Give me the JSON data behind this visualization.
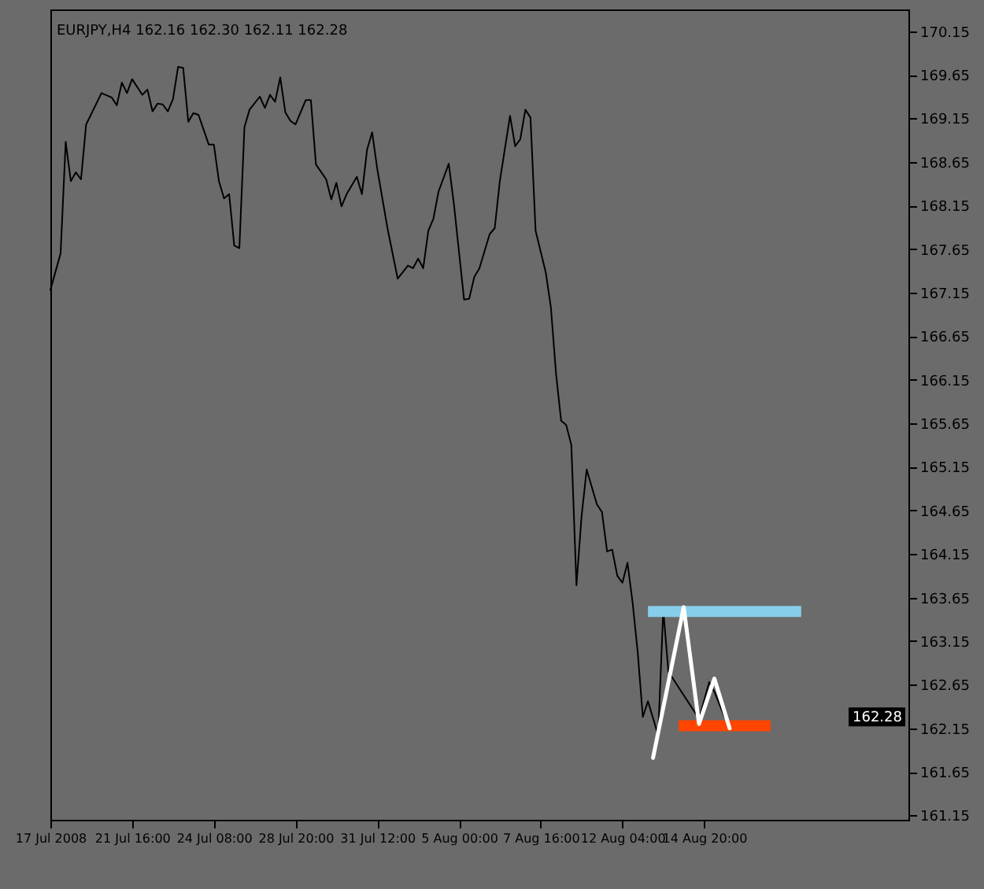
{
  "chart_data": {
    "type": "line",
    "title": "EURJPY,H4  162.16 162.30 162.11 162.28",
    "categories": [
      "17 Jul 2008",
      null,
      null,
      null,
      null,
      null,
      null,
      null,
      null,
      null,
      null,
      null,
      null,
      null,
      null,
      null,
      "21 Jul 16:00",
      null,
      null,
      null,
      null,
      null,
      null,
      null,
      null,
      null,
      null,
      null,
      null,
      null,
      null,
      null,
      "24 Jul 08:00",
      null,
      null,
      null,
      null,
      null,
      null,
      null,
      null,
      null,
      null,
      null,
      null,
      null,
      null,
      null,
      "28 Jul 20:00",
      null,
      null,
      null,
      null,
      null,
      null,
      null,
      null,
      null,
      null,
      null,
      null,
      null,
      null,
      null,
      "31 Jul 12:00",
      null,
      null,
      null,
      null,
      null,
      null,
      null,
      null,
      null,
      null,
      null,
      null,
      null,
      null,
      null,
      "5 Aug 00:00",
      null,
      null,
      null,
      null,
      null,
      null,
      null,
      null,
      null,
      null,
      null,
      null,
      null,
      null,
      null,
      "7 Aug 16:00",
      null,
      null,
      null,
      null,
      null,
      null,
      null,
      null,
      null,
      null,
      null,
      null,
      null,
      null,
      null,
      "12 Aug 04:00",
      null,
      null,
      null,
      null,
      null,
      null,
      null,
      null,
      null,
      null,
      null,
      null,
      null,
      null,
      null,
      "14 Aug 20:00",
      null,
      null,
      null,
      null,
      null,
      null,
      null,
      null,
      null,
      null,
      null,
      null,
      null,
      null,
      null,
      null,
      null,
      null,
      null,
      null,
      null,
      null,
      null,
      null,
      null,
      null,
      null,
      null,
      null,
      null,
      null,
      null,
      null,
      null,
      null,
      null,
      null,
      null,
      null,
      null
    ],
    "ylim": [
      161.1,
      170.4
    ],
    "yticks": [
      161.15,
      161.65,
      162.15,
      162.65,
      163.15,
      163.65,
      164.15,
      164.65,
      165.15,
      165.65,
      166.15,
      166.65,
      167.15,
      167.65,
      168.15,
      168.65,
      169.15,
      169.65,
      170.15
    ],
    "grid": false,
    "marker": "none",
    "line_style": "solid",
    "annotations": [
      {
        "text": "162.28",
        "y": 162.28
      }
    ],
    "series": [
      {
        "color": "#000000",
        "values": [
          167.18,
          null,
          167.6,
          168.88,
          168.43,
          168.53,
          168.45,
          169.08,
          null,
          null,
          169.44,
          null,
          169.39,
          169.3,
          169.56,
          169.44,
          169.6,
          null,
          169.42,
          169.48,
          169.23,
          169.32,
          169.31,
          169.23,
          169.37,
          169.74,
          169.73,
          169.11,
          169.21,
          169.19,
          null,
          168.85,
          168.85,
          168.43,
          168.23,
          168.28,
          167.69,
          167.66,
          169.05,
          169.25,
          null,
          169.4,
          169.27,
          169.42,
          169.34,
          169.62,
          169.22,
          169.12,
          169.08,
          null,
          169.36,
          169.36,
          168.62,
          null,
          168.45,
          168.22,
          168.41,
          168.14,
          168.28,
          null,
          168.48,
          168.28,
          168.79,
          168.99,
          168.57,
          null,
          167.89,
          null,
          167.31,
          null,
          167.46,
          167.43,
          167.54,
          167.43,
          167.86,
          168.0,
          168.31,
          null,
          168.63,
          168.17,
          null,
          167.07,
          167.08,
          167.33,
          167.43,
          null,
          167.82,
          167.89,
          168.43,
          null,
          169.18,
          168.83,
          168.91,
          169.25,
          169.16,
          167.86,
          null,
          167.38,
          166.98,
          166.22,
          165.68,
          165.63,
          165.4,
          163.79,
          164.58,
          165.12,
          null,
          164.72,
          164.63,
          164.18,
          164.2,
          163.9,
          163.82,
          164.05,
          163.59,
          163.02,
          162.28,
          162.46,
          null,
          162.07,
          163.51,
          162.8,
          null,
          null,
          null,
          null,
          null,
          162.26,
          null,
          162.68,
          162.57,
          null,
          162.28,
          null,
          null,
          null,
          null,
          null,
          null,
          null,
          null,
          null,
          null,
          null,
          null,
          null,
          null,
          null,
          null,
          null,
          null,
          null,
          null,
          null,
          null,
          null,
          null,
          null,
          null,
          null,
          null,
          null,
          null,
          null,
          null,
          null,
          null,
          null,
          null
        ]
      },
      {
        "color": "#87ceeb",
        "values": [
          null,
          null,
          null,
          null,
          null,
          null,
          null,
          null,
          null,
          null,
          null,
          null,
          null,
          null,
          null,
          null,
          null,
          null,
          null,
          null,
          null,
          null,
          null,
          null,
          null,
          null,
          null,
          null,
          null,
          null,
          null,
          null,
          null,
          null,
          null,
          null,
          null,
          null,
          null,
          null,
          null,
          null,
          null,
          null,
          null,
          null,
          null,
          null,
          null,
          null,
          null,
          null,
          null,
          null,
          null,
          null,
          null,
          null,
          null,
          null,
          null,
          null,
          null,
          null,
          null,
          null,
          null,
          null,
          null,
          null,
          null,
          null,
          null,
          null,
          null,
          null,
          null,
          null,
          null,
          null,
          null,
          null,
          null,
          null,
          null,
          null,
          null,
          null,
          null,
          null,
          null,
          null,
          null,
          null,
          null,
          null,
          null,
          null,
          null,
          null,
          null,
          null,
          null,
          null,
          null,
          null,
          null,
          null,
          null,
          null,
          null,
          null,
          null,
          null,
          null,
          null,
          null,
          163.49,
          null,
          null,
          null,
          null,
          null,
          null,
          null,
          null,
          null,
          null,
          null,
          null,
          null,
          null,
          null,
          null,
          null,
          null,
          null,
          null,
          null,
          null,
          null,
          null,
          null,
          null,
          null,
          null,
          null,
          163.49,
          null,
          null,
          null,
          null,
          null,
          null,
          null,
          null,
          null,
          null,
          null,
          null,
          null,
          null,
          null,
          null,
          null,
          null,
          null,
          null,
          null
        ]
      },
      {
        "color": "#ff4500",
        "values": [
          null,
          null,
          null,
          null,
          null,
          null,
          null,
          null,
          null,
          null,
          null,
          null,
          null,
          null,
          null,
          null,
          null,
          null,
          null,
          null,
          null,
          null,
          null,
          null,
          null,
          null,
          null,
          null,
          null,
          null,
          null,
          null,
          null,
          null,
          null,
          null,
          null,
          null,
          null,
          null,
          null,
          null,
          null,
          null,
          null,
          null,
          null,
          null,
          null,
          null,
          null,
          null,
          null,
          null,
          null,
          null,
          null,
          null,
          null,
          null,
          null,
          null,
          null,
          null,
          null,
          null,
          null,
          null,
          null,
          null,
          null,
          null,
          null,
          null,
          null,
          null,
          null,
          null,
          null,
          null,
          null,
          null,
          null,
          null,
          null,
          null,
          null,
          null,
          null,
          null,
          null,
          null,
          null,
          null,
          null,
          null,
          null,
          null,
          null,
          null,
          null,
          null,
          null,
          null,
          null,
          null,
          null,
          null,
          null,
          null,
          null,
          null,
          null,
          null,
          null,
          null,
          null,
          null,
          null,
          null,
          null,
          null,
          null,
          162.18,
          null,
          null,
          null,
          null,
          null,
          null,
          null,
          null,
          null,
          null,
          null,
          null,
          null,
          null,
          null,
          null,
          null,
          162.18,
          null,
          null,
          null,
          null,
          null,
          null,
          null,
          null,
          null,
          null,
          null,
          null,
          null,
          null,
          null,
          null,
          null,
          null,
          null,
          null,
          null,
          null,
          null,
          null,
          null,
          null,
          null
        ]
      },
      {
        "color": "#ffffff",
        "values": [
          null,
          null,
          null,
          null,
          null,
          null,
          null,
          null,
          null,
          null,
          null,
          null,
          null,
          null,
          null,
          null,
          null,
          null,
          null,
          null,
          null,
          null,
          null,
          null,
          null,
          null,
          null,
          null,
          null,
          null,
          null,
          null,
          null,
          null,
          null,
          null,
          null,
          null,
          null,
          null,
          null,
          null,
          null,
          null,
          null,
          null,
          null,
          null,
          null,
          null,
          null,
          null,
          null,
          null,
          null,
          null,
          null,
          null,
          null,
          null,
          null,
          null,
          null,
          null,
          null,
          null,
          null,
          null,
          null,
          null,
          null,
          null,
          null,
          null,
          null,
          null,
          null,
          null,
          null,
          null,
          null,
          null,
          null,
          null,
          null,
          null,
          null,
          null,
          null,
          null,
          null,
          null,
          null,
          null,
          null,
          null,
          null,
          null,
          null,
          null,
          null,
          null,
          null,
          null,
          null,
          null,
          null,
          null,
          null,
          null,
          null,
          null,
          null,
          null,
          null,
          null,
          null,
          null,
          161.81,
          null,
          null,
          null,
          null,
          null,
          163.54,
          null,
          null,
          162.2,
          null,
          null,
          162.72,
          null,
          null,
          162.15,
          null,
          null,
          null,
          null,
          null,
          null,
          null,
          null,
          null,
          null,
          null,
          null,
          null,
          null,
          null,
          null,
          null,
          null,
          null,
          null,
          null,
          null,
          null,
          null,
          null,
          null,
          null,
          null,
          null,
          null,
          null,
          null,
          null,
          null,
          null
        ]
      }
    ]
  }
}
